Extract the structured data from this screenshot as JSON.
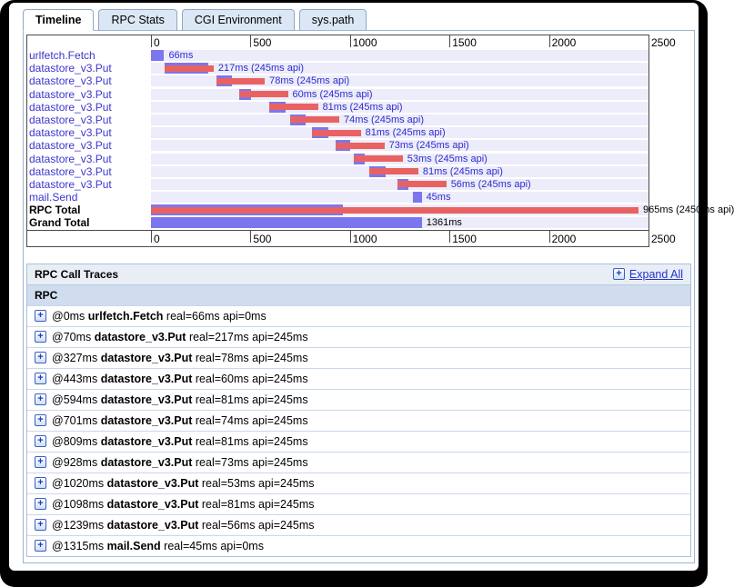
{
  "tabs": [
    {
      "label": "Timeline",
      "active": true
    },
    {
      "label": "RPC Stats",
      "active": false
    },
    {
      "label": "CGI Environment",
      "active": false
    },
    {
      "label": "sys.path",
      "active": false
    }
  ],
  "icons": {
    "expand_plus": "+"
  },
  "colors": {
    "real_bar": "#7b76ee",
    "api_bar": "#e96262",
    "track": "#ececfa",
    "row_label_link": "#3a35cf",
    "bar_text_link": "#2c2ccf",
    "link": "#2233cc",
    "pane_border": "#9cb6d4"
  },
  "chart_data": {
    "type": "bar",
    "variant": "rpc-timeline-gantt",
    "unit": "ms",
    "axis": {
      "ticks": [
        0,
        500,
        1000,
        1500,
        2000,
        2500
      ],
      "max": 2500
    },
    "rows": [
      {
        "label": "urlfetch.Fetch",
        "start": 0,
        "real": 66,
        "api": 0,
        "text": "66ms",
        "bold": false,
        "text_style": "link"
      },
      {
        "label": "datastore_v3.Put",
        "start": 70,
        "real": 217,
        "api": 245,
        "text": "217ms (245ms api)",
        "bold": false,
        "text_style": "link"
      },
      {
        "label": "datastore_v3.Put",
        "start": 327,
        "real": 78,
        "api": 245,
        "text": "78ms (245ms api)",
        "bold": false,
        "text_style": "link"
      },
      {
        "label": "datastore_v3.Put",
        "start": 443,
        "real": 60,
        "api": 245,
        "text": "60ms (245ms api)",
        "bold": false,
        "text_style": "link"
      },
      {
        "label": "datastore_v3.Put",
        "start": 594,
        "real": 81,
        "api": 245,
        "text": "81ms (245ms api)",
        "bold": false,
        "text_style": "link"
      },
      {
        "label": "datastore_v3.Put",
        "start": 701,
        "real": 74,
        "api": 245,
        "text": "74ms (245ms api)",
        "bold": false,
        "text_style": "link"
      },
      {
        "label": "datastore_v3.Put",
        "start": 809,
        "real": 81,
        "api": 245,
        "text": "81ms (245ms api)",
        "bold": false,
        "text_style": "link"
      },
      {
        "label": "datastore_v3.Put",
        "start": 928,
        "real": 73,
        "api": 245,
        "text": "73ms (245ms api)",
        "bold": false,
        "text_style": "link"
      },
      {
        "label": "datastore_v3.Put",
        "start": 1020,
        "real": 53,
        "api": 245,
        "text": "53ms (245ms api)",
        "bold": false,
        "text_style": "link"
      },
      {
        "label": "datastore_v3.Put",
        "start": 1098,
        "real": 81,
        "api": 245,
        "text": "81ms (245ms api)",
        "bold": false,
        "text_style": "link"
      },
      {
        "label": "datastore_v3.Put",
        "start": 1239,
        "real": 56,
        "api": 245,
        "text": "56ms (245ms api)",
        "bold": false,
        "text_style": "link"
      },
      {
        "label": "mail.Send",
        "start": 1315,
        "real": 45,
        "api": 0,
        "text": "45ms",
        "bold": false,
        "text_style": "link"
      },
      {
        "label": "RPC Total",
        "start": 0,
        "real": 965,
        "api": 2450,
        "text": "965ms (2450ms api)",
        "bold": true,
        "text_style": "plain"
      },
      {
        "label": "Grand Total",
        "start": 0,
        "real": 1361,
        "api": 0,
        "text": "1361ms",
        "bold": true,
        "text_style": "plain"
      }
    ]
  },
  "traces": {
    "title": "RPC Call Traces",
    "expand_all_label": "Expand All",
    "column_header": "RPC",
    "rows": [
      {
        "at": "@0ms",
        "service": "urlfetch.Fetch",
        "detail": "real=66ms api=0ms"
      },
      {
        "at": "@70ms",
        "service": "datastore_v3.Put",
        "detail": "real=217ms api=245ms"
      },
      {
        "at": "@327ms",
        "service": "datastore_v3.Put",
        "detail": "real=78ms api=245ms"
      },
      {
        "at": "@443ms",
        "service": "datastore_v3.Put",
        "detail": "real=60ms api=245ms"
      },
      {
        "at": "@594ms",
        "service": "datastore_v3.Put",
        "detail": "real=81ms api=245ms"
      },
      {
        "at": "@701ms",
        "service": "datastore_v3.Put",
        "detail": "real=74ms api=245ms"
      },
      {
        "at": "@809ms",
        "service": "datastore_v3.Put",
        "detail": "real=81ms api=245ms"
      },
      {
        "at": "@928ms",
        "service": "datastore_v3.Put",
        "detail": "real=73ms api=245ms"
      },
      {
        "at": "@1020ms",
        "service": "datastore_v3.Put",
        "detail": "real=53ms api=245ms"
      },
      {
        "at": "@1098ms",
        "service": "datastore_v3.Put",
        "detail": "real=81ms api=245ms"
      },
      {
        "at": "@1239ms",
        "service": "datastore_v3.Put",
        "detail": "real=56ms api=245ms"
      },
      {
        "at": "@1315ms",
        "service": "mail.Send",
        "detail": "real=45ms api=0ms"
      }
    ]
  }
}
